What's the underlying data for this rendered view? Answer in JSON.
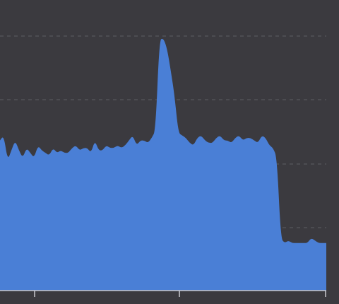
{
  "chart_data": {
    "type": "area",
    "title": "",
    "xlabel": "",
    "ylabel": "",
    "grid": true,
    "colors": {
      "background": "#3b3a3f",
      "fill": "#4a7fd6",
      "grid": "#5e5d63",
      "axis": "#c9c9cf"
    },
    "x_tick_labels": [
      "",
      "",
      ""
    ],
    "series": [
      {
        "values": [
          0.6,
          0.62,
          0.52,
          0.56,
          0.6,
          0.56,
          0.53,
          0.57,
          0.55,
          0.53,
          0.58,
          0.56,
          0.55,
          0.54,
          0.57,
          0.55,
          0.56,
          0.55,
          0.55,
          0.57,
          0.58,
          0.56,
          0.57,
          0.57,
          0.55,
          0.6,
          0.56,
          0.56,
          0.58,
          0.57,
          0.57,
          0.58,
          0.57,
          0.58,
          0.6,
          0.62,
          0.58,
          0.6,
          0.6,
          0.59,
          0.61,
          0.64,
          1.0,
          1.01,
          0.97,
          0.88,
          0.78,
          0.63,
          0.62,
          0.61,
          0.59,
          0.58,
          0.61,
          0.62,
          0.6,
          0.59,
          0.59,
          0.61,
          0.62,
          0.6,
          0.6,
          0.59,
          0.61,
          0.62,
          0.6,
          0.61,
          0.61,
          0.6,
          0.59,
          0.62,
          0.61,
          0.58,
          0.57,
          0.53,
          0.21,
          0.19,
          0.2,
          0.19,
          0.19,
          0.19,
          0.19,
          0.19,
          0.21,
          0.2,
          0.19,
          0.19,
          0.19
        ]
      }
    ]
  }
}
